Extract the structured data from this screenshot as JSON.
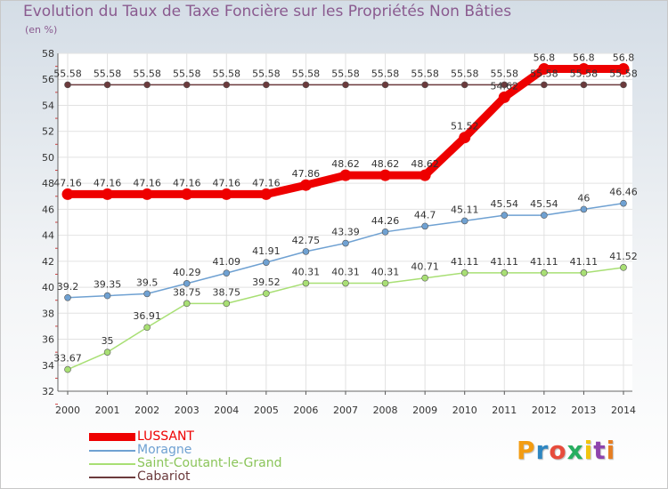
{
  "chart_data": {
    "type": "line",
    "title": "Evolution du Taux de Taxe Foncière sur les Propriétés Non Bâties",
    "subtitle": "(en %)",
    "xlabel": "",
    "ylabel": "",
    "ylim": [
      32,
      58
    ],
    "yticks": [
      "32",
      "34",
      "36",
      "38",
      "40",
      "42",
      "44",
      "46",
      "48",
      "50",
      "52",
      "54",
      "56",
      "58"
    ],
    "categories": [
      "2000",
      "2001",
      "2002",
      "2003",
      "2004",
      "2005",
      "2006",
      "2007",
      "2008",
      "2009",
      "2010",
      "2011",
      "2012",
      "2013",
      "2014"
    ],
    "grid": true,
    "series": [
      {
        "name": "LUSSANT",
        "color": "#ee0000",
        "values": [
          47.16,
          47.16,
          47.16,
          47.16,
          47.16,
          47.16,
          47.86,
          48.62,
          48.62,
          48.62,
          51.52,
          54.62,
          56.8,
          56.8,
          56.8
        ],
        "labels": [
          "47.16",
          "47.16",
          "47.16",
          "47.16",
          "47.16",
          "47.16",
          "47.86",
          "48.62",
          "48.62",
          "48.62",
          "51.52",
          "54.62",
          "56.8",
          "56.8",
          "56.8"
        ]
      },
      {
        "name": "Moragne",
        "color": "#6fa1d2",
        "values": [
          39.2,
          39.35,
          39.5,
          40.29,
          41.09,
          41.91,
          42.75,
          43.39,
          44.26,
          44.7,
          45.11,
          45.54,
          45.54,
          46,
          46.46
        ],
        "labels": [
          "39.2",
          "39.35",
          "39.5",
          "40.29",
          "41.09",
          "41.91",
          "42.75",
          "43.39",
          "44.26",
          "44.7",
          "45.11",
          "45.54",
          "45.54",
          "46",
          "46.46"
        ]
      },
      {
        "name": "Saint-Coutant-le-Grand",
        "color": "#a8df74",
        "values": [
          33.67,
          35,
          36.91,
          38.75,
          38.75,
          39.52,
          40.31,
          40.31,
          40.31,
          40.71,
          41.11,
          41.11,
          41.11,
          41.11,
          41.52
        ],
        "labels": [
          "33.67",
          "35",
          "36.91",
          "38.75",
          "38.75",
          "39.52",
          "40.31",
          "40.31",
          "40.31",
          "40.71",
          "41.11",
          "41.11",
          "41.11",
          "41.11",
          "41.52"
        ]
      },
      {
        "name": "Cabariot",
        "color": "#6b3a3c",
        "values": [
          55.58,
          55.58,
          55.58,
          55.58,
          55.58,
          55.58,
          55.58,
          55.58,
          55.58,
          55.58,
          55.58,
          55.58,
          55.58,
          55.58,
          55.58
        ],
        "labels": [
          "55.58",
          "55.58",
          "55.58",
          "55.58",
          "55.58",
          "55.58",
          "55.58",
          "55.58",
          "55.58",
          "55.58",
          "55.58",
          "55.58",
          "55.58",
          "55.58",
          "55.58"
        ]
      }
    ],
    "legend": [
      {
        "label": "LUSSANT",
        "color": "#ee0000"
      },
      {
        "label": "Moragne",
        "color": "#6fa1d2"
      },
      {
        "label": "Saint-Coutant-le-Grand",
        "color": "#a8df74"
      },
      {
        "label": "Cabariot",
        "color": "#6b3a3c"
      }
    ]
  },
  "branding": {
    "logo_letters": [
      "P",
      "r",
      "o",
      "x",
      "i",
      "t",
      "i"
    ],
    "logo_colors": [
      "#f39c12",
      "#2e86c1",
      "#e74c3c",
      "#27ae60",
      "#f1c40f",
      "#8e44ad",
      "#e67e22"
    ]
  }
}
